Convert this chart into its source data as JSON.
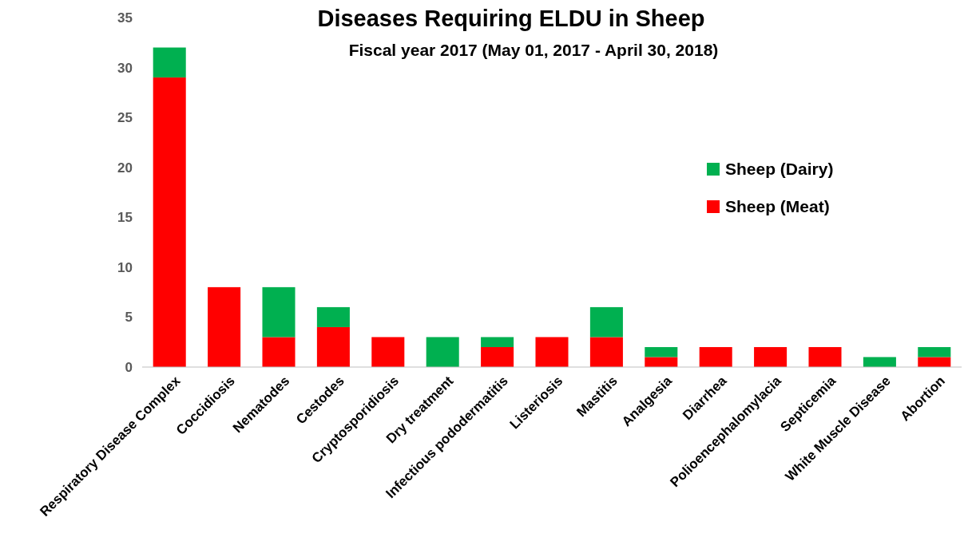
{
  "chart_data": {
    "type": "bar",
    "title": "Diseases Requiring ELDU in Sheep",
    "subtitle": "Fiscal year 2017 (May 01, 2017 - April 30, 2018)",
    "categories": [
      "Respiratory Disease Complex",
      "Coccidiosis",
      "Nematodes",
      "Cestodes",
      "Cryptosporidiosis",
      "Dry treatment",
      "Infectious pododermatitis",
      "Listeriosis",
      "Mastitis",
      "Analgesia",
      "Diarrhea",
      "Polioencephalomylacia",
      "Septicemia",
      "White Muscle Disease",
      "Abortion"
    ],
    "series": [
      {
        "name": "Sheep (Meat)",
        "color": "#ff0000",
        "values": [
          29,
          8,
          3,
          4,
          3,
          0,
          2,
          3,
          3,
          1,
          2,
          2,
          2,
          0,
          1
        ]
      },
      {
        "name": "Sheep (Dairy)",
        "color": "#00b050",
        "values": [
          3,
          0,
          5,
          2,
          0,
          3,
          1,
          0,
          3,
          1,
          0,
          0,
          0,
          1,
          1
        ]
      }
    ],
    "stacked": true,
    "ylim": [
      0,
      35
    ],
    "yticks": [
      0,
      5,
      10,
      15,
      20,
      25,
      30,
      35
    ],
    "grid": false,
    "legend": "top right"
  }
}
